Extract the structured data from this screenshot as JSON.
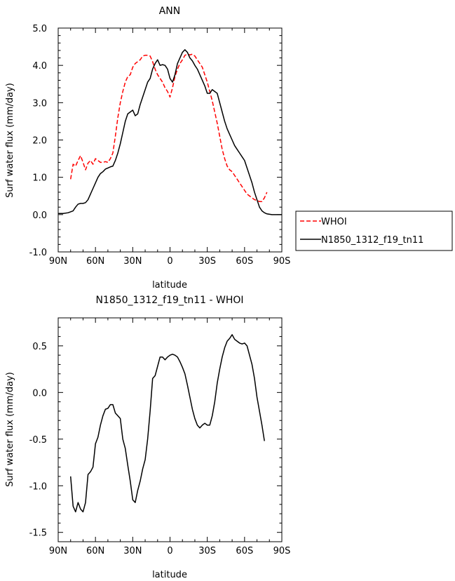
{
  "chart_data": [
    {
      "type": "line",
      "title": "ANN",
      "xlabel": "latitude",
      "ylabel": "Surf water flux (mm/day)",
      "xlim": [
        -90,
        90
      ],
      "ylim": [
        -1.0,
        5.0
      ],
      "x_ticks": [
        {
          "value": -90,
          "label": "90N"
        },
        {
          "value": -60,
          "label": "60N"
        },
        {
          "value": -30,
          "label": "30N"
        },
        {
          "value": 0,
          "label": "0"
        },
        {
          "value": 30,
          "label": "30S"
        },
        {
          "value": 60,
          "label": "60S"
        },
        {
          "value": 90,
          "label": "90S"
        }
      ],
      "y_ticks": [
        {
          "value": -1.0,
          "label": "-1.0"
        },
        {
          "value": 0.0,
          "label": "0.0"
        },
        {
          "value": 1.0,
          "label": "1.0"
        },
        {
          "value": 2.0,
          "label": "2.0"
        },
        {
          "value": 3.0,
          "label": "3.0"
        },
        {
          "value": 4.0,
          "label": "4.0"
        },
        {
          "value": 5.0,
          "label": "5.0"
        }
      ],
      "legend_position": "right",
      "series": [
        {
          "name": "WHOI",
          "color": "#ff0000",
          "dash": "dashed",
          "points": [
            [
              -80,
              0.95
            ],
            [
              -78,
              1.35
            ],
            [
              -76,
              1.3
            ],
            [
              -74,
              1.45
            ],
            [
              -72,
              1.58
            ],
            [
              -70,
              1.4
            ],
            [
              -68,
              1.2
            ],
            [
              -66,
              1.38
            ],
            [
              -64,
              1.45
            ],
            [
              -62,
              1.35
            ],
            [
              -60,
              1.5
            ],
            [
              -58,
              1.45
            ],
            [
              -56,
              1.4
            ],
            [
              -54,
              1.4
            ],
            [
              -52,
              1.42
            ],
            [
              -50,
              1.4
            ],
            [
              -48,
              1.5
            ],
            [
              -46,
              1.65
            ],
            [
              -44,
              2.1
            ],
            [
              -42,
              2.6
            ],
            [
              -40,
              3.0
            ],
            [
              -38,
              3.3
            ],
            [
              -36,
              3.55
            ],
            [
              -34,
              3.7
            ],
            [
              -32,
              3.75
            ],
            [
              -30,
              3.95
            ],
            [
              -28,
              4.05
            ],
            [
              -26,
              4.1
            ],
            [
              -24,
              4.15
            ],
            [
              -22,
              4.25
            ],
            [
              -20,
              4.27
            ],
            [
              -18,
              4.27
            ],
            [
              -16,
              4.25
            ],
            [
              -14,
              4.1
            ],
            [
              -12,
              3.9
            ],
            [
              -10,
              3.75
            ],
            [
              -8,
              3.65
            ],
            [
              -6,
              3.55
            ],
            [
              -4,
              3.4
            ],
            [
              -2,
              3.3
            ],
            [
              0,
              3.15
            ],
            [
              2,
              3.4
            ],
            [
              4,
              3.7
            ],
            [
              6,
              3.9
            ],
            [
              8,
              4.05
            ],
            [
              10,
              4.15
            ],
            [
              12,
              4.27
            ],
            [
              14,
              4.3
            ],
            [
              16,
              4.28
            ],
            [
              18,
              4.3
            ],
            [
              20,
              4.25
            ],
            [
              22,
              4.15
            ],
            [
              24,
              4.05
            ],
            [
              26,
              3.95
            ],
            [
              28,
              3.75
            ],
            [
              30,
              3.55
            ],
            [
              32,
              3.3
            ],
            [
              34,
              3.05
            ],
            [
              36,
              2.75
            ],
            [
              38,
              2.45
            ],
            [
              40,
              2.1
            ],
            [
              42,
              1.75
            ],
            [
              44,
              1.5
            ],
            [
              46,
              1.3
            ],
            [
              48,
              1.2
            ],
            [
              50,
              1.15
            ],
            [
              52,
              1.05
            ],
            [
              54,
              0.95
            ],
            [
              56,
              0.85
            ],
            [
              58,
              0.75
            ],
            [
              60,
              0.65
            ],
            [
              62,
              0.55
            ],
            [
              64,
              0.5
            ],
            [
              66,
              0.45
            ],
            [
              68,
              0.4
            ],
            [
              70,
              0.38
            ],
            [
              72,
              0.35
            ],
            [
              74,
              0.35
            ],
            [
              76,
              0.45
            ],
            [
              78,
              0.6
            ]
          ]
        },
        {
          "name": "N1850_1312_f19_tn11",
          "color": "#000000",
          "dash": "solid",
          "points": [
            [
              -90,
              0.03
            ],
            [
              -86,
              0.03
            ],
            [
              -82,
              0.05
            ],
            [
              -78,
              0.1
            ],
            [
              -76,
              0.2
            ],
            [
              -74,
              0.28
            ],
            [
              -72,
              0.3
            ],
            [
              -70,
              0.3
            ],
            [
              -68,
              0.32
            ],
            [
              -66,
              0.4
            ],
            [
              -64,
              0.55
            ],
            [
              -62,
              0.7
            ],
            [
              -60,
              0.85
            ],
            [
              -58,
              1.0
            ],
            [
              -56,
              1.1
            ],
            [
              -54,
              1.15
            ],
            [
              -52,
              1.22
            ],
            [
              -50,
              1.25
            ],
            [
              -48,
              1.28
            ],
            [
              -46,
              1.3
            ],
            [
              -44,
              1.45
            ],
            [
              -42,
              1.65
            ],
            [
              -40,
              1.9
            ],
            [
              -38,
              2.2
            ],
            [
              -36,
              2.5
            ],
            [
              -34,
              2.7
            ],
            [
              -32,
              2.75
            ],
            [
              -30,
              2.8
            ],
            [
              -28,
              2.65
            ],
            [
              -26,
              2.7
            ],
            [
              -24,
              2.95
            ],
            [
              -22,
              3.15
            ],
            [
              -20,
              3.35
            ],
            [
              -18,
              3.55
            ],
            [
              -16,
              3.65
            ],
            [
              -14,
              3.9
            ],
            [
              -12,
              4.05
            ],
            [
              -10,
              4.15
            ],
            [
              -8,
              4.0
            ],
            [
              -6,
              4.02
            ],
            [
              -4,
              4.0
            ],
            [
              -2,
              3.9
            ],
            [
              0,
              3.65
            ],
            [
              2,
              3.55
            ],
            [
              4,
              3.75
            ],
            [
              6,
              4.05
            ],
            [
              8,
              4.2
            ],
            [
              10,
              4.35
            ],
            [
              12,
              4.42
            ],
            [
              14,
              4.35
            ],
            [
              16,
              4.2
            ],
            [
              18,
              4.12
            ],
            [
              20,
              4.0
            ],
            [
              22,
              3.9
            ],
            [
              24,
              3.75
            ],
            [
              26,
              3.6
            ],
            [
              28,
              3.45
            ],
            [
              30,
              3.25
            ],
            [
              32,
              3.25
            ],
            [
              34,
              3.35
            ],
            [
              36,
              3.3
            ],
            [
              38,
              3.25
            ],
            [
              40,
              3.0
            ],
            [
              42,
              2.75
            ],
            [
              44,
              2.5
            ],
            [
              46,
              2.3
            ],
            [
              48,
              2.15
            ],
            [
              50,
              2.0
            ],
            [
              52,
              1.85
            ],
            [
              54,
              1.75
            ],
            [
              56,
              1.65
            ],
            [
              58,
              1.55
            ],
            [
              60,
              1.45
            ],
            [
              62,
              1.25
            ],
            [
              64,
              1.05
            ],
            [
              66,
              0.85
            ],
            [
              68,
              0.6
            ],
            [
              70,
              0.4
            ],
            [
              72,
              0.2
            ],
            [
              74,
              0.1
            ],
            [
              76,
              0.05
            ],
            [
              78,
              0.02
            ],
            [
              82,
              0.0
            ],
            [
              86,
              0.0
            ],
            [
              90,
              0.0
            ]
          ]
        }
      ]
    },
    {
      "type": "line",
      "title": "N1850_1312_f19_tn11 - WHOI",
      "xlabel": "latitude",
      "ylabel": "Surf water flux (mm/day)",
      "xlim": [
        -90,
        90
      ],
      "ylim": [
        -1.6,
        0.8
      ],
      "x_ticks": [
        {
          "value": -90,
          "label": "90N"
        },
        {
          "value": -60,
          "label": "60N"
        },
        {
          "value": -30,
          "label": "30N"
        },
        {
          "value": 0,
          "label": "0"
        },
        {
          "value": 30,
          "label": "30S"
        },
        {
          "value": 60,
          "label": "60S"
        },
        {
          "value": 90,
          "label": "90S"
        }
      ],
      "y_ticks": [
        {
          "value": -1.5,
          "label": "-1.5"
        },
        {
          "value": -1.0,
          "label": "-1.0"
        },
        {
          "value": -0.5,
          "label": "-0.5"
        },
        {
          "value": 0.0,
          "label": "0.0"
        },
        {
          "value": 0.5,
          "label": "0.5"
        }
      ],
      "series": [
        {
          "name": "",
          "color": "#000000",
          "dash": "solid",
          "points": [
            [
              -80,
              -0.9
            ],
            [
              -78,
              -1.22
            ],
            [
              -76,
              -1.28
            ],
            [
              -74,
              -1.18
            ],
            [
              -72,
              -1.25
            ],
            [
              -70,
              -1.28
            ],
            [
              -68,
              -1.18
            ],
            [
              -66,
              -0.88
            ],
            [
              -64,
              -0.85
            ],
            [
              -62,
              -0.8
            ],
            [
              -60,
              -0.55
            ],
            [
              -58,
              -0.48
            ],
            [
              -56,
              -0.35
            ],
            [
              -54,
              -0.25
            ],
            [
              -52,
              -0.18
            ],
            [
              -50,
              -0.17
            ],
            [
              -48,
              -0.13
            ],
            [
              -46,
              -0.13
            ],
            [
              -44,
              -0.22
            ],
            [
              -42,
              -0.25
            ],
            [
              -40,
              -0.28
            ],
            [
              -38,
              -0.5
            ],
            [
              -36,
              -0.6
            ],
            [
              -34,
              -0.78
            ],
            [
              -32,
              -0.95
            ],
            [
              -30,
              -1.15
            ],
            [
              -28,
              -1.18
            ],
            [
              -26,
              -1.05
            ],
            [
              -24,
              -0.95
            ],
            [
              -22,
              -0.82
            ],
            [
              -20,
              -0.72
            ],
            [
              -18,
              -0.5
            ],
            [
              -16,
              -0.2
            ],
            [
              -14,
              0.15
            ],
            [
              -12,
              0.18
            ],
            [
              -10,
              0.28
            ],
            [
              -8,
              0.38
            ],
            [
              -6,
              0.38
            ],
            [
              -4,
              0.35
            ],
            [
              -2,
              0.38
            ],
            [
              0,
              0.4
            ],
            [
              2,
              0.41
            ],
            [
              4,
              0.4
            ],
            [
              6,
              0.38
            ],
            [
              8,
              0.33
            ],
            [
              10,
              0.27
            ],
            [
              12,
              0.2
            ],
            [
              14,
              0.08
            ],
            [
              16,
              -0.05
            ],
            [
              18,
              -0.18
            ],
            [
              20,
              -0.28
            ],
            [
              22,
              -0.35
            ],
            [
              24,
              -0.38
            ],
            [
              26,
              -0.35
            ],
            [
              28,
              -0.33
            ],
            [
              30,
              -0.35
            ],
            [
              32,
              -0.35
            ],
            [
              34,
              -0.25
            ],
            [
              36,
              -0.1
            ],
            [
              38,
              0.1
            ],
            [
              40,
              0.25
            ],
            [
              42,
              0.38
            ],
            [
              44,
              0.48
            ],
            [
              46,
              0.55
            ],
            [
              48,
              0.58
            ],
            [
              50,
              0.62
            ],
            [
              52,
              0.57
            ],
            [
              54,
              0.55
            ],
            [
              56,
              0.53
            ],
            [
              58,
              0.52
            ],
            [
              60,
              0.53
            ],
            [
              62,
              0.5
            ],
            [
              64,
              0.4
            ],
            [
              66,
              0.3
            ],
            [
              68,
              0.15
            ],
            [
              70,
              -0.05
            ],
            [
              72,
              -0.2
            ],
            [
              74,
              -0.35
            ],
            [
              76,
              -0.52
            ]
          ]
        }
      ]
    }
  ]
}
